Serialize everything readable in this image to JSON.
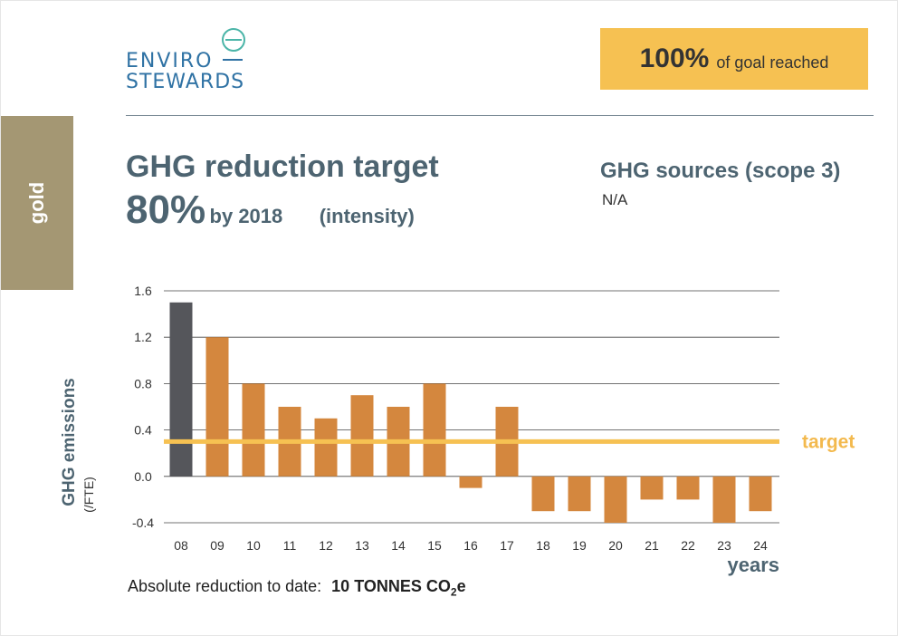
{
  "logo": {
    "line1": "ENVIRO",
    "line2": "STEWARDS"
  },
  "goal": {
    "pct": "100%",
    "text": "of goal reached"
  },
  "tier": "gold",
  "target": {
    "title": "GHG reduction target",
    "pct": "80%",
    "by": "by 2018",
    "basis": "(intensity)"
  },
  "sources": {
    "title": "GHG sources (scope 3)",
    "value": "N/A"
  },
  "absolute": {
    "label": "Absolute reduction to date:",
    "value": "10 TONNES CO",
    "sub": "2",
    "suffix": "e"
  },
  "colors": {
    "base_bar": "#55565b",
    "bar": "#d4873e",
    "target_line": "#f6c152",
    "accent_text": "#4d6471",
    "gold_tab": "#a49773"
  },
  "chart_data": {
    "type": "bar",
    "categories": [
      "08",
      "09",
      "10",
      "11",
      "12",
      "13",
      "14",
      "15",
      "16",
      "17",
      "18",
      "19",
      "20",
      "21",
      "22",
      "23",
      "24"
    ],
    "values": [
      1.5,
      1.2,
      0.8,
      0.6,
      0.5,
      0.7,
      0.6,
      0.8,
      -0.1,
      0.6,
      -0.3,
      -0.3,
      -0.4,
      -0.2,
      -0.2,
      -0.4,
      -0.3
    ],
    "ylim": [
      -0.4,
      1.6
    ],
    "yticks": [
      "1.6",
      "1.2",
      "0.8",
      "0.4",
      "0.0",
      "-0.4"
    ],
    "ylabel": "GHG emissions",
    "ylabel_unit": "(/FTE)",
    "xlabel": "years",
    "target_value": 0.3,
    "target_label": "target",
    "grid": true
  }
}
